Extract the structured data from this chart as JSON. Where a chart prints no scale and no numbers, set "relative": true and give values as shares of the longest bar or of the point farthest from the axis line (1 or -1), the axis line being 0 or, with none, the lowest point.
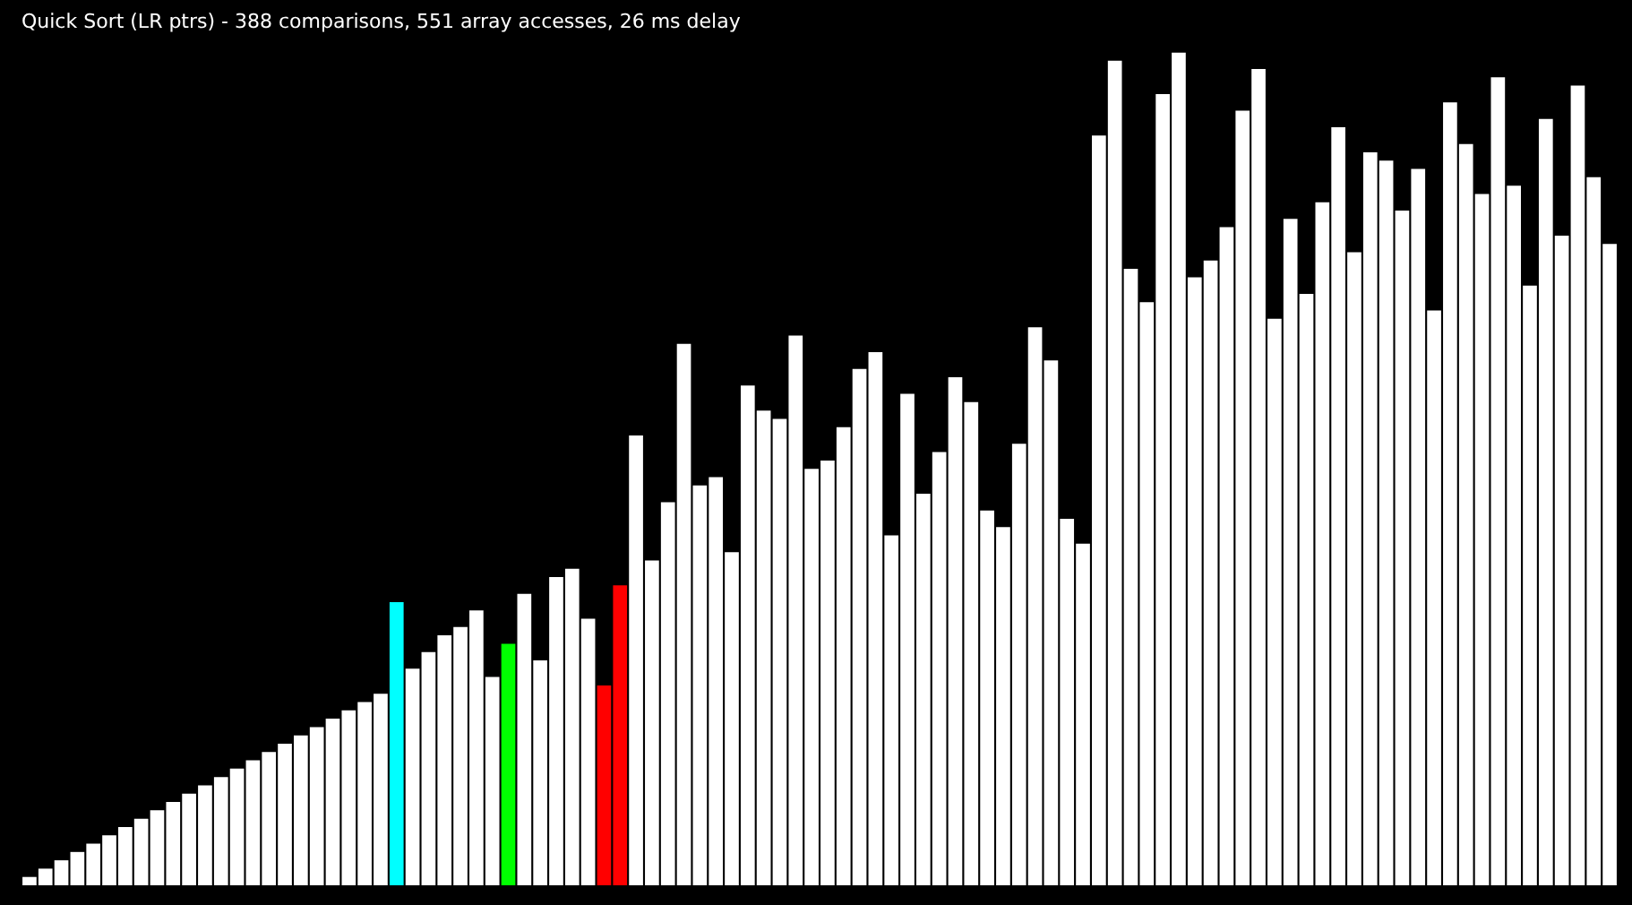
{
  "chart_data": {
    "type": "bar",
    "title": "Quick Sort (LR ptrs) - 388 comparisons, 551 array accesses, 26 ms delay",
    "relative": true,
    "categories": [
      null,
      null,
      null,
      null,
      null,
      null,
      null,
      null,
      null,
      null,
      null,
      null,
      null,
      null,
      null,
      null,
      null,
      null,
      null,
      null,
      null,
      null,
      null,
      null,
      null,
      null,
      null,
      null,
      null,
      null,
      null,
      null,
      null,
      null,
      null,
      null,
      null,
      null,
      null,
      null,
      null,
      null,
      null,
      null,
      null,
      null,
      null,
      null,
      null,
      null,
      null,
      null,
      null,
      null,
      null,
      null,
      null,
      null,
      null,
      null,
      null,
      null,
      null,
      null,
      null,
      null,
      null,
      null,
      null,
      null,
      null,
      null,
      null,
      null,
      null,
      null,
      null,
      null,
      null,
      null,
      null,
      null,
      null,
      null,
      null,
      null,
      null,
      null,
      null,
      null,
      null,
      null,
      null,
      null,
      null,
      null,
      null,
      null,
      null,
      null
    ],
    "values": [
      0.01,
      0.02,
      0.03,
      0.04,
      0.05,
      0.06,
      0.07,
      0.08,
      0.09,
      0.1,
      0.11,
      0.12,
      0.13,
      0.14,
      0.15,
      0.16,
      0.17,
      0.18,
      0.19,
      0.2,
      0.21,
      0.22,
      0.23,
      0.34,
      0.26,
      0.28,
      0.3,
      0.31,
      0.33,
      0.25,
      0.29,
      0.35,
      0.27,
      0.37,
      0.38,
      0.32,
      0.24,
      0.36,
      0.54,
      0.39,
      0.46,
      0.65,
      0.48,
      0.49,
      0.4,
      0.6,
      0.57,
      0.56,
      0.66,
      0.5,
      0.51,
      0.55,
      0.62,
      0.64,
      0.42,
      0.59,
      0.47,
      0.52,
      0.61,
      0.58,
      0.45,
      0.43,
      0.53,
      0.67,
      0.63,
      0.44,
      0.41,
      0.9,
      0.99,
      0.74,
      0.7,
      0.95,
      1,
      0.73,
      0.75,
      0.79,
      0.93,
      0.98,
      0.68,
      0.8,
      0.71,
      0.82,
      0.91,
      0.76,
      0.88,
      0.87,
      0.81,
      0.86,
      0.69,
      0.94,
      0.89,
      0.83,
      0.97,
      0.84,
      0.72,
      0.92,
      0.78,
      0.96,
      0.85,
      0.77
    ],
    "colors": [
      "#ffffff",
      "#ffffff",
      "#ffffff",
      "#ffffff",
      "#ffffff",
      "#ffffff",
      "#ffffff",
      "#ffffff",
      "#ffffff",
      "#ffffff",
      "#ffffff",
      "#ffffff",
      "#ffffff",
      "#ffffff",
      "#ffffff",
      "#ffffff",
      "#ffffff",
      "#ffffff",
      "#ffffff",
      "#ffffff",
      "#ffffff",
      "#ffffff",
      "#ffffff",
      "#00ffff",
      "#ffffff",
      "#ffffff",
      "#ffffff",
      "#ffffff",
      "#ffffff",
      "#ffffff",
      "#00ff00",
      "#ffffff",
      "#ffffff",
      "#ffffff",
      "#ffffff",
      "#ffffff",
      "#ff0000",
      "#ff0000",
      "#ffffff",
      "#ffffff",
      "#ffffff",
      "#ffffff",
      "#ffffff",
      "#ffffff",
      "#ffffff",
      "#ffffff",
      "#ffffff",
      "#ffffff",
      "#ffffff",
      "#ffffff",
      "#ffffff",
      "#ffffff",
      "#ffffff",
      "#ffffff",
      "#ffffff",
      "#ffffff",
      "#ffffff",
      "#ffffff",
      "#ffffff",
      "#ffffff",
      "#ffffff",
      "#ffffff",
      "#ffffff",
      "#ffffff",
      "#ffffff",
      "#ffffff",
      "#ffffff",
      "#ffffff",
      "#ffffff",
      "#ffffff",
      "#ffffff",
      "#ffffff",
      "#ffffff",
      "#ffffff",
      "#ffffff",
      "#ffffff",
      "#ffffff",
      "#ffffff",
      "#ffffff",
      "#ffffff",
      "#ffffff",
      "#ffffff",
      "#ffffff",
      "#ffffff",
      "#ffffff",
      "#ffffff",
      "#ffffff",
      "#ffffff",
      "#ffffff",
      "#ffffff",
      "#ffffff",
      "#ffffff",
      "#ffffff",
      "#ffffff",
      "#ffffff",
      "#ffffff",
      "#ffffff",
      "#ffffff",
      "#ffffff",
      "#ffffff"
    ]
  }
}
